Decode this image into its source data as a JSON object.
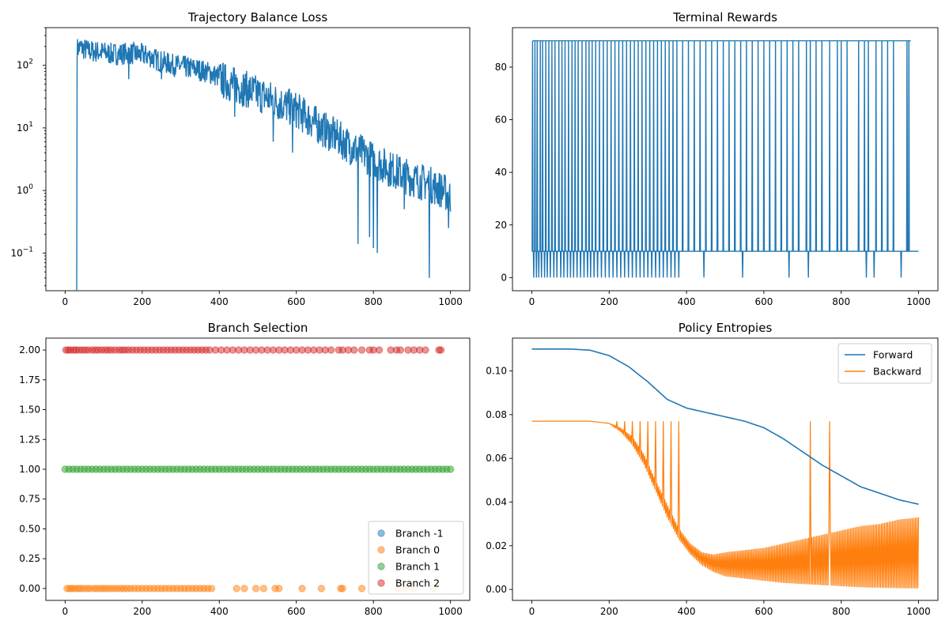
{
  "figure": {
    "layout": "2x2"
  },
  "chart_data": [
    {
      "id": "tb_loss",
      "type": "line",
      "title": "Trajectory Balance Loss",
      "xlabel": "",
      "ylabel": "",
      "yscale": "log",
      "xlim": [
        -50,
        1050
      ],
      "ylim": [
        0.025,
        400
      ],
      "xticks": [
        0,
        200,
        400,
        600,
        800,
        1000
      ],
      "xtick_labels": [
        "0",
        "200",
        "400",
        "600",
        "800",
        "1000"
      ],
      "yticks": [
        0.1,
        1,
        10,
        100
      ],
      "ytick_labels": [
        "10",
        "10",
        "10",
        "10"
      ],
      "ytick_exponents": [
        "−1",
        "0",
        "1",
        "2"
      ],
      "grid": false,
      "color": "#1f77b4",
      "series": [
        {
          "x": [
            30,
            31,
            40,
            60,
            80,
            100,
            120,
            140,
            160,
            180,
            200,
            220,
            240,
            260,
            280,
            300,
            320,
            340,
            360,
            380,
            400,
            420,
            440,
            460,
            480,
            500,
            520,
            540,
            560,
            580,
            600,
            620,
            640,
            660,
            680,
            700,
            720,
            740,
            760,
            780,
            800,
            820,
            840,
            860,
            880,
            900,
            920,
            940,
            960,
            980,
            1000
          ],
          "values": [
            0.02,
            200,
            210,
            185,
            180,
            175,
            165,
            165,
            170,
            165,
            160,
            150,
            130,
            120,
            110,
            105,
            100,
            95,
            88,
            80,
            70,
            62,
            55,
            50,
            45,
            40,
            36,
            32,
            28,
            25,
            22,
            18,
            15,
            12,
            10,
            8.5,
            7,
            5.8,
            5,
            4.2,
            3.5,
            3,
            2.6,
            2.3,
            2,
            1.8,
            1.6,
            1.5,
            1.3,
            1.15,
            0.9
          ],
          "dips": [
            [
              165,
              60
            ],
            [
              250,
              60
            ],
            [
              320,
              65
            ],
            [
              440,
              15
            ],
            [
              540,
              6
            ],
            [
              590,
              4
            ],
            [
              760,
              0.14
            ],
            [
              790,
              0.18
            ],
            [
              800,
              0.12
            ],
            [
              810,
              0.1
            ],
            [
              880,
              0.5
            ],
            [
              945,
              0.04
            ],
            [
              995,
              0.25
            ]
          ]
        }
      ]
    },
    {
      "id": "terminal_rewards",
      "type": "line",
      "title": "Terminal Rewards",
      "xlabel": "",
      "ylabel": "",
      "xlim": [
        -50,
        1050
      ],
      "ylim": [
        -5,
        95
      ],
      "xticks": [
        0,
        200,
        400,
        600,
        800,
        1000
      ],
      "xtick_labels": [
        "0",
        "200",
        "400",
        "600",
        "800",
        "1000"
      ],
      "yticks": [
        0,
        20,
        40,
        60,
        80
      ],
      "ytick_labels": [
        "0",
        "20",
        "40",
        "60",
        "80"
      ],
      "grid": false,
      "color": "#1f77b4",
      "levels": [
        0,
        10,
        90
      ],
      "series": [
        {
          "high_x": [
            2,
            8,
            14,
            22,
            28,
            36,
            44,
            52,
            60,
            70,
            78,
            86,
            95,
            104,
            112,
            120,
            130,
            140,
            148,
            156,
            165,
            175,
            185,
            195,
            205,
            215,
            225,
            235,
            245,
            255,
            265,
            275,
            285,
            295,
            305,
            315,
            325,
            335,
            345,
            355,
            365,
            375,
            390,
            405,
            420,
            435,
            450,
            465,
            480,
            495,
            510,
            525,
            540,
            555,
            570,
            585,
            600,
            615,
            630,
            645,
            660,
            675,
            690,
            710,
            720,
            735,
            750,
            770,
            790,
            800,
            815,
            845,
            860,
            870,
            890,
            905,
            920,
            935,
            970,
            975
          ],
          "low_x": [
            5,
            12,
            18,
            25,
            33,
            40,
            48,
            57,
            65,
            75,
            83,
            92,
            100,
            108,
            117,
            126,
            135,
            144,
            152,
            161,
            170,
            180,
            190,
            200,
            210,
            220,
            230,
            240,
            250,
            260,
            270,
            280,
            290,
            300,
            310,
            320,
            330,
            340,
            350,
            360,
            370,
            380,
            445,
            495,
            545,
            555,
            615,
            665,
            715,
            770,
            865,
            885,
            905,
            955
          ]
        }
      ]
    },
    {
      "id": "branch_selection",
      "type": "scatter",
      "title": "Branch Selection",
      "xlabel": "",
      "ylabel": "",
      "xlim": [
        -50,
        1050
      ],
      "ylim": [
        -0.1,
        2.1
      ],
      "xticks": [
        0,
        200,
        400,
        600,
        800,
        1000
      ],
      "xtick_labels": [
        "0",
        "200",
        "400",
        "600",
        "800",
        "1000"
      ],
      "yticks": [
        0,
        0.25,
        0.5,
        0.75,
        1,
        1.25,
        1.5,
        1.75,
        2
      ],
      "ytick_labels": [
        "0.00",
        "0.25",
        "0.50",
        "0.75",
        "1.00",
        "1.25",
        "1.50",
        "1.75",
        "2.00"
      ],
      "grid": false,
      "legend": "lower-right",
      "series": [
        {
          "name": "Branch -1",
          "color": "#1f77b4",
          "y": -1,
          "x": []
        },
        {
          "name": "Branch 0",
          "color": "#ff7f0e",
          "y": 0,
          "x": [
            5,
            12,
            18,
            25,
            33,
            40,
            48,
            57,
            65,
            75,
            83,
            92,
            100,
            108,
            117,
            126,
            135,
            144,
            152,
            161,
            170,
            180,
            190,
            200,
            210,
            220,
            230,
            240,
            250,
            260,
            270,
            280,
            290,
            300,
            310,
            320,
            330,
            340,
            350,
            360,
            370,
            380,
            445,
            465,
            495,
            515,
            545,
            555,
            615,
            665,
            715,
            720,
            770,
            865,
            885,
            905,
            955
          ]
        },
        {
          "name": "Branch 1",
          "color": "#2ca02c",
          "y": 1,
          "x": [
            0,
            10,
            20,
            30,
            40,
            50,
            60,
            70,
            80,
            90,
            100,
            110,
            120,
            130,
            140,
            150,
            160,
            170,
            180,
            190,
            200,
            210,
            220,
            230,
            240,
            250,
            260,
            270,
            280,
            290,
            300,
            310,
            320,
            330,
            340,
            350,
            360,
            370,
            380,
            390,
            400,
            410,
            420,
            430,
            440,
            450,
            460,
            470,
            480,
            490,
            500,
            510,
            520,
            530,
            540,
            550,
            560,
            570,
            580,
            590,
            600,
            610,
            620,
            630,
            640,
            650,
            660,
            670,
            680,
            690,
            700,
            710,
            720,
            730,
            740,
            750,
            760,
            770,
            780,
            790,
            800,
            810,
            820,
            830,
            840,
            850,
            860,
            870,
            880,
            890,
            900,
            910,
            920,
            930,
            940,
            950,
            960,
            970,
            980,
            990,
            1000
          ]
        },
        {
          "name": "Branch 2",
          "color": "#d62728",
          "y": 2,
          "x": [
            2,
            8,
            14,
            22,
            28,
            36,
            44,
            52,
            60,
            70,
            78,
            86,
            95,
            104,
            112,
            120,
            130,
            140,
            148,
            156,
            165,
            175,
            185,
            195,
            205,
            215,
            225,
            235,
            245,
            255,
            265,
            275,
            285,
            295,
            305,
            315,
            325,
            335,
            345,
            355,
            365,
            375,
            390,
            405,
            420,
            435,
            450,
            465,
            480,
            495,
            510,
            525,
            540,
            555,
            570,
            585,
            600,
            615,
            630,
            645,
            660,
            675,
            690,
            710,
            720,
            735,
            750,
            770,
            790,
            800,
            815,
            845,
            860,
            870,
            890,
            905,
            920,
            935,
            970,
            975
          ]
        }
      ]
    },
    {
      "id": "policy_entropies",
      "type": "line",
      "title": "Policy Entropies",
      "xlabel": "",
      "ylabel": "",
      "xlim": [
        -50,
        1050
      ],
      "ylim": [
        -0.005,
        0.115
      ],
      "xticks": [
        0,
        200,
        400,
        600,
        800,
        1000
      ],
      "xtick_labels": [
        "0",
        "200",
        "400",
        "600",
        "800",
        "1000"
      ],
      "yticks": [
        0,
        0.02,
        0.04,
        0.06,
        0.08,
        0.1
      ],
      "ytick_labels": [
        "0.00",
        "0.02",
        "0.04",
        "0.06",
        "0.08",
        "0.10"
      ],
      "grid": false,
      "legend": "top-right",
      "series": [
        {
          "name": "Forward",
          "color": "#1f77b4",
          "x": [
            0,
            50,
            100,
            150,
            200,
            250,
            300,
            350,
            400,
            450,
            500,
            550,
            600,
            650,
            700,
            750,
            800,
            850,
            900,
            950,
            1000
          ],
          "values": [
            0.11,
            0.11,
            0.11,
            0.1095,
            0.107,
            0.102,
            0.095,
            0.087,
            0.083,
            0.081,
            0.079,
            0.077,
            0.074,
            0.069,
            0.063,
            0.057,
            0.052,
            0.047,
            0.044,
            0.041,
            0.039
          ]
        },
        {
          "name": "Backward",
          "color": "#ff7f0e",
          "x": [
            0,
            50,
            100,
            150,
            200,
            230,
            260,
            290,
            320,
            350,
            380,
            410,
            440,
            470,
            500,
            550,
            600,
            650,
            700,
            750,
            800,
            850,
            900,
            950,
            1000
          ],
          "upper": [
            0.077,
            0.077,
            0.077,
            0.077,
            0.076,
            0.074,
            0.07,
            0.062,
            0.05,
            0.039,
            0.028,
            0.021,
            0.017,
            0.016,
            0.017,
            0.018,
            0.019,
            0.021,
            0.023,
            0.025,
            0.027,
            0.029,
            0.03,
            0.032,
            0.033
          ],
          "lower": [
            0.077,
            0.077,
            0.077,
            0.077,
            0.076,
            0.072,
            0.066,
            0.057,
            0.045,
            0.033,
            0.023,
            0.016,
            0.011,
            0.008,
            0.006,
            0.005,
            0.004,
            0.003,
            0.0025,
            0.002,
            0.0015,
            0.001,
            0.0008,
            0.0006,
            0.0005
          ],
          "spikes_x": [
            220,
            240,
            260,
            280,
            300,
            320,
            340,
            360,
            380,
            445,
            465,
            495,
            515,
            545,
            555,
            615,
            665,
            715,
            720,
            770,
            865,
            885,
            905,
            955
          ]
        }
      ]
    }
  ]
}
